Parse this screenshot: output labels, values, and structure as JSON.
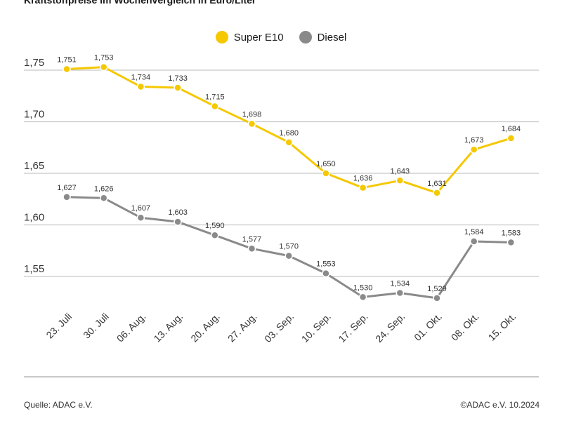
{
  "chart_data": {
    "type": "line",
    "title": "Kraftstoffpreise im Wochenvergleich in Euro/Liter",
    "categories": [
      "23. Juli",
      "30. Juli",
      "06. Aug.",
      "13. Aug.",
      "20. Aug.",
      "27. Aug.",
      "03. Sep.",
      "10. Sep.",
      "17. Sep.",
      "24. Sep.",
      "01. Okt.",
      "08. Okt.",
      "15. Okt."
    ],
    "series": [
      {
        "name": "Super E10",
        "color": "#f5c800",
        "values": [
          1.751,
          1.753,
          1.734,
          1.733,
          1.715,
          1.698,
          1.68,
          1.65,
          1.636,
          1.643,
          1.631,
          1.673,
          1.684
        ],
        "labels": [
          "1,751",
          "1,753",
          "1,734",
          "1,733",
          "1,715",
          "1,698",
          "1,680",
          "1,650",
          "1,636",
          "1,643",
          "1,631",
          "1,673",
          "1,684"
        ]
      },
      {
        "name": "Diesel",
        "color": "#8a8a8a",
        "values": [
          1.627,
          1.626,
          1.607,
          1.603,
          1.59,
          1.577,
          1.57,
          1.553,
          1.53,
          1.534,
          1.529,
          1.584,
          1.583
        ],
        "labels": [
          "1,627",
          "1,626",
          "1,607",
          "1,603",
          "1,590",
          "1,577",
          "1,570",
          "1,553",
          "1,530",
          "1,534",
          "1,529",
          "1,584",
          "1,583"
        ]
      }
    ],
    "yticks": [
      1.75,
      1.7,
      1.65,
      1.6,
      1.55
    ],
    "ytick_labels": [
      "1,75",
      "1,70",
      "1,65",
      "1,60",
      "1,55"
    ],
    "ylim": [
      1.5,
      1.76
    ],
    "grid": true,
    "legend": "top-center"
  },
  "footer": {
    "source": "Quelle: ADAC e.V.",
    "copyright": "©ADAC e.V. 10.2024"
  }
}
